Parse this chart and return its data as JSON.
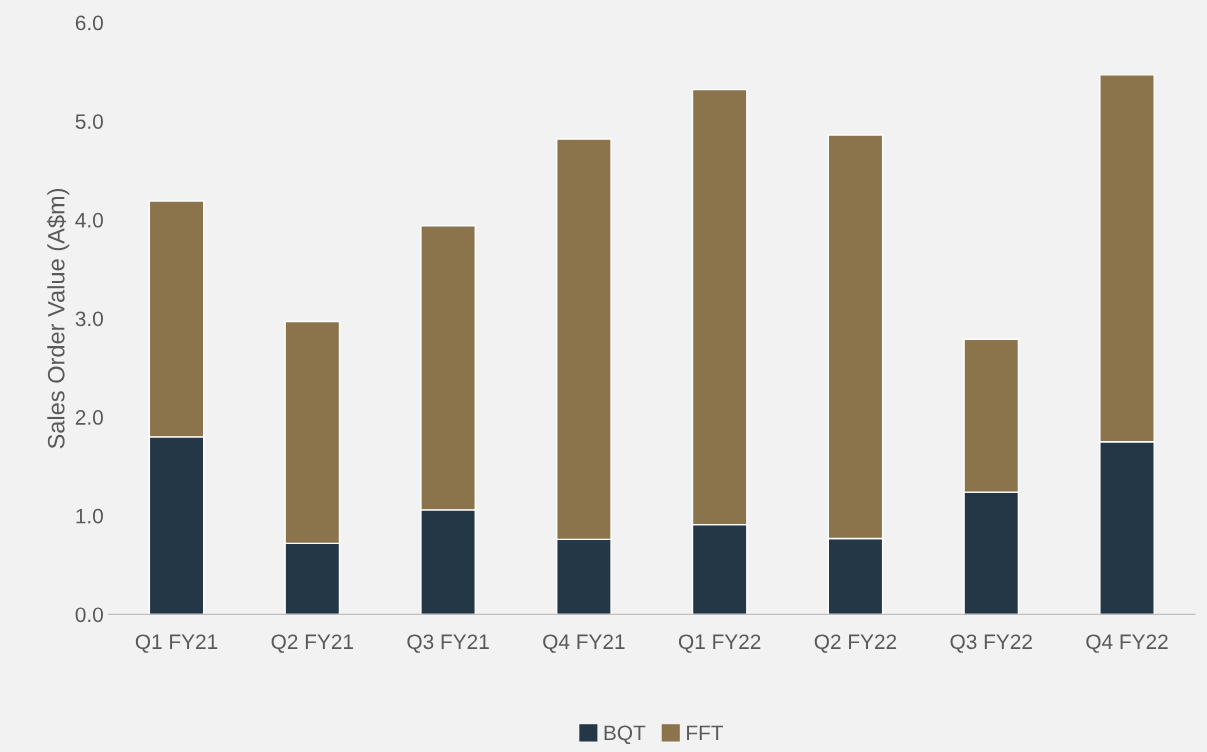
{
  "chart_data": {
    "type": "bar",
    "stacked": true,
    "ylabel": "Sales Order Value (A$m)",
    "categories": [
      "Q1 FY21",
      "Q2 FY21",
      "Q3 FY21",
      "Q4 FY21",
      "Q1 FY22",
      "Q2 FY22",
      "Q3 FY22",
      "Q4 FY22"
    ],
    "series": [
      {
        "name": "BQT",
        "color": "#243746",
        "values": [
          1.8,
          0.72,
          1.06,
          0.76,
          0.91,
          0.77,
          1.24,
          1.75
        ]
      },
      {
        "name": "FFT",
        "color": "#8b734b",
        "values": [
          2.39,
          2.25,
          2.88,
          4.06,
          4.41,
          4.09,
          1.55,
          3.72
        ]
      }
    ],
    "ylim": [
      0,
      6
    ],
    "yticks": [
      {
        "value": 0,
        "label": "0.0"
      },
      {
        "value": 1,
        "label": "1.0"
      },
      {
        "value": 2,
        "label": "2.0"
      },
      {
        "value": 3,
        "label": "3.0"
      },
      {
        "value": 4,
        "label": "4.0"
      },
      {
        "value": 5,
        "label": "5.0"
      },
      {
        "value": 6,
        "label": "6.0"
      }
    ],
    "grid": false,
    "legend": "bottom"
  }
}
